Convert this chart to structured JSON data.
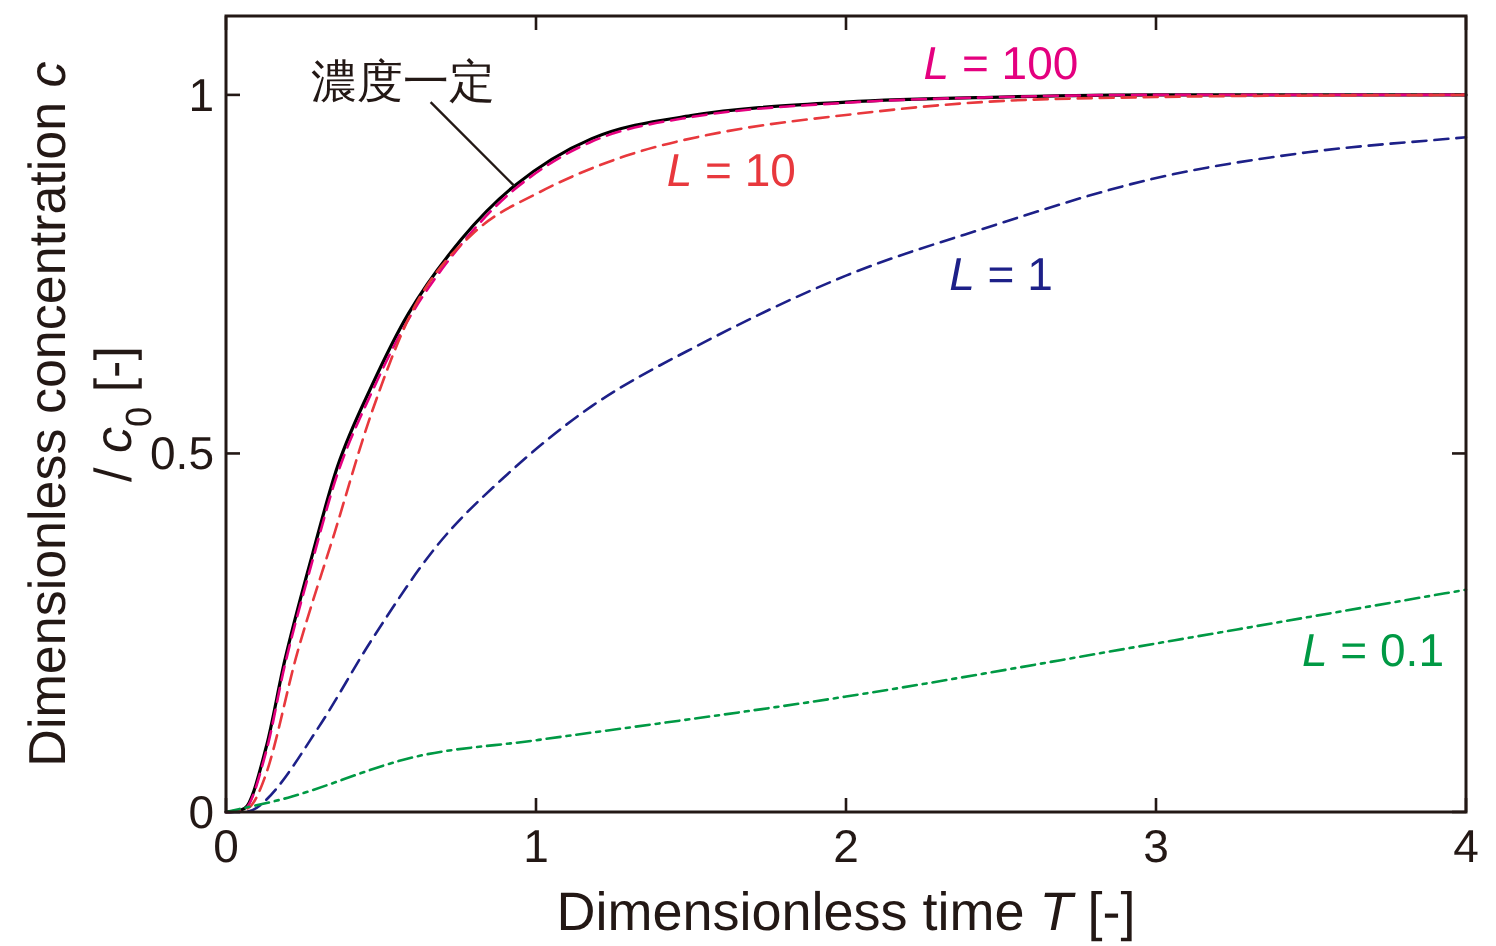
{
  "chart_data": {
    "type": "line",
    "xlabel": "Dimensionless time *T* [-]",
    "ylabel": "Dimensionless concentration *c* / *c*$_{0}$ [-]",
    "xlim": [
      0,
      4
    ],
    "ylim": [
      0,
      1.11
    ],
    "xticks": [
      0,
      1,
      2,
      3,
      4
    ],
    "yticks": [
      0,
      0.5,
      1
    ],
    "grid": false,
    "marker": "none",
    "series": [
      {
        "name": "濃度一定",
        "color": "#000000",
        "line_style": "solid",
        "x": [
          0,
          0.06,
          0.13,
          0.19,
          0.28,
          0.36,
          0.47,
          0.59,
          0.76,
          0.93,
          1.18,
          1.5,
          2.0,
          2.5,
          3.0,
          4.0
        ],
        "values": [
          0,
          0.005,
          0.091,
          0.212,
          0.361,
          0.482,
          0.594,
          0.696,
          0.799,
          0.873,
          0.939,
          0.971,
          0.99,
          0.997,
          1.0,
          1.0
        ]
      },
      {
        "name": "*L* = 100",
        "color": "#e4007f",
        "line_style": "dashed",
        "x": [
          0,
          0.06,
          0.13,
          0.19,
          0.28,
          0.36,
          0.47,
          0.59,
          0.76,
          0.93,
          1.18,
          1.5,
          2.0,
          2.5,
          3.0,
          4.0
        ],
        "values": [
          0,
          0.004,
          0.085,
          0.205,
          0.352,
          0.472,
          0.585,
          0.688,
          0.792,
          0.868,
          0.935,
          0.969,
          0.989,
          0.997,
          1.0,
          1.0
        ]
      },
      {
        "name": "*L* = 10",
        "color": "#e8383d",
        "line_style": "dashed",
        "x": [
          0,
          0.07,
          0.13,
          0.23,
          0.35,
          0.47,
          0.61,
          0.8,
          1.01,
          1.29,
          1.6,
          2.0,
          2.44,
          3.0,
          4.0
        ],
        "values": [
          0,
          0.005,
          0.054,
          0.222,
          0.389,
          0.557,
          0.706,
          0.808,
          0.864,
          0.915,
          0.948,
          0.972,
          0.99,
          0.997,
          1.0
        ]
      },
      {
        "name": "*L* = 1",
        "color": "#1d2088",
        "line_style": "dashed",
        "x": [
          0,
          0.06,
          0.13,
          0.3,
          0.47,
          0.68,
          0.89,
          1.18,
          1.52,
          2.0,
          2.44,
          2.99,
          3.49,
          4.0
        ],
        "values": [
          0,
          0,
          0.017,
          0.119,
          0.24,
          0.371,
          0.464,
          0.566,
          0.65,
          0.748,
          0.813,
          0.883,
          0.92,
          0.941
        ]
      },
      {
        "name": "*L* = 0.1",
        "color": "#009944",
        "line_style": "dashdot",
        "x": [
          0,
          0.2,
          0.61,
          1.0,
          2.0,
          3.0,
          4.0
        ],
        "values": [
          0,
          0.02,
          0.077,
          0.1,
          0.161,
          0.235,
          0.31
        ]
      }
    ]
  }
}
